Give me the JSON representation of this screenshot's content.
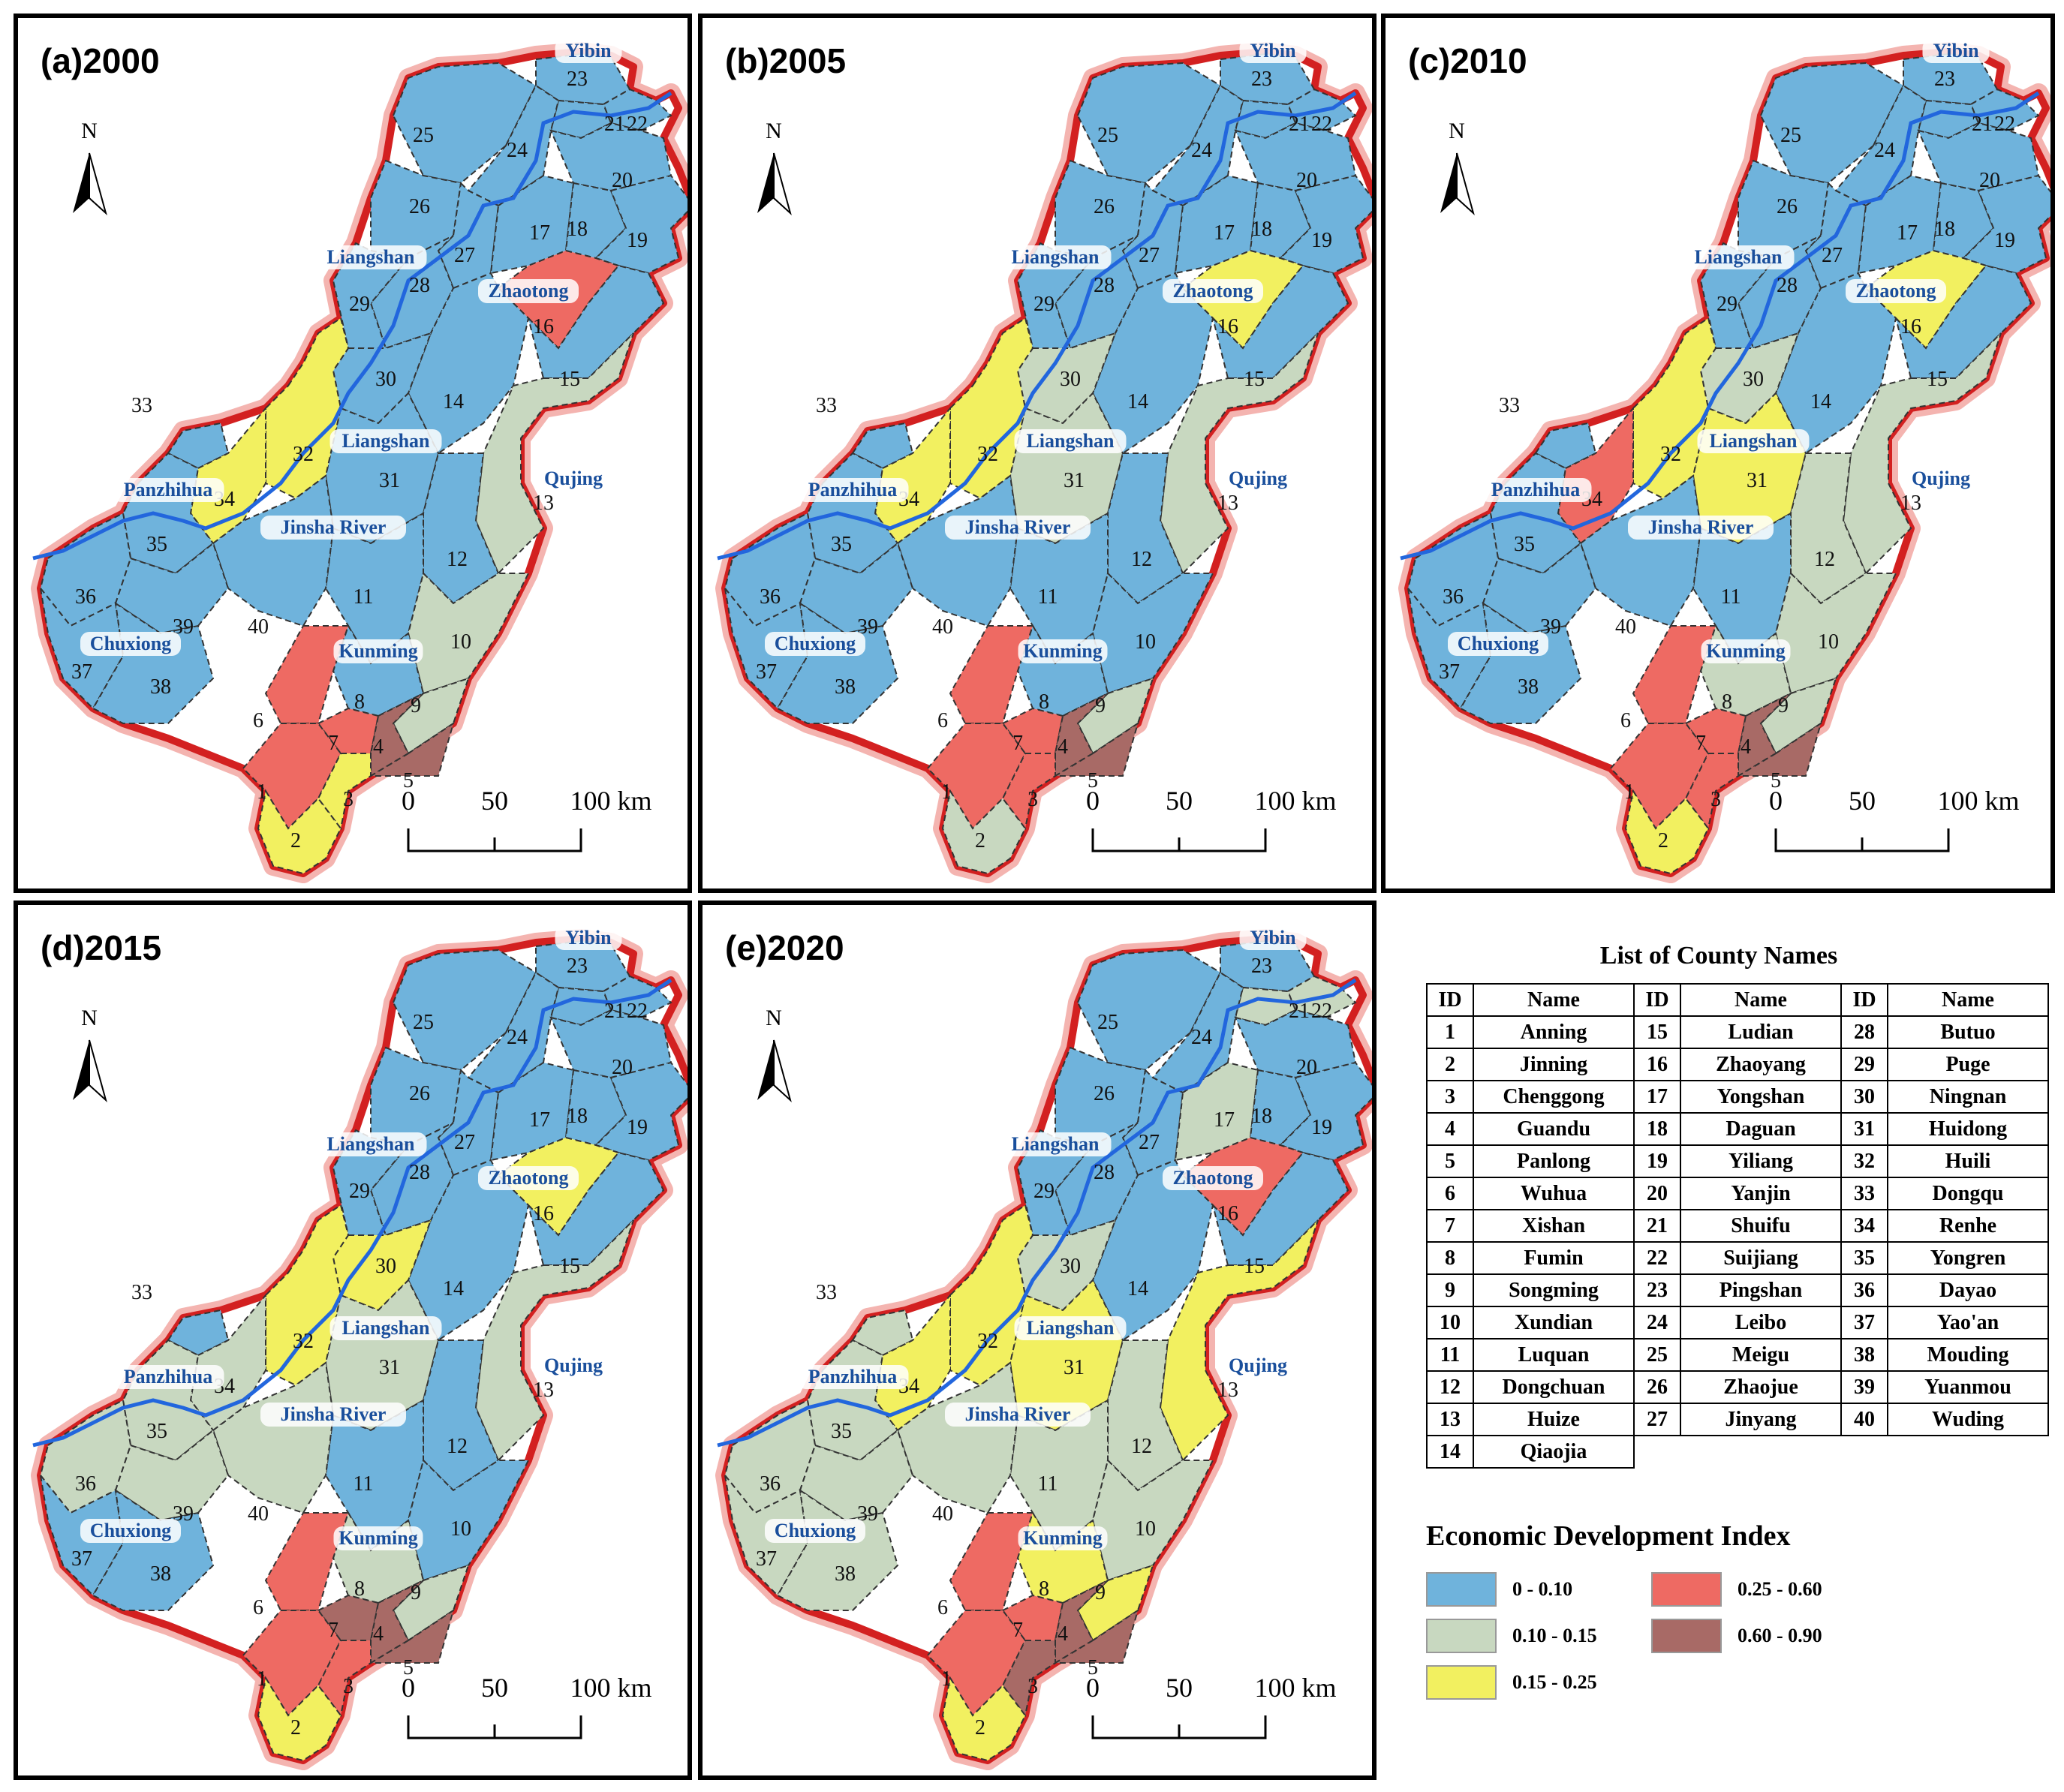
{
  "panels": [
    {
      "id": "a",
      "title": "(a)2000"
    },
    {
      "id": "b",
      "title": "(b)2005"
    },
    {
      "id": "c",
      "title": "(c)2010"
    },
    {
      "id": "d",
      "title": "(d)2015"
    },
    {
      "id": "e",
      "title": "(e)2020"
    }
  ],
  "map": {
    "north_label": "N",
    "scale_labels": [
      "0",
      "50",
      "100 km"
    ],
    "region_labels": [
      "Yibin",
      "Liangshan",
      "Zhaotong",
      "Liangshan",
      "Panzhihua",
      "Qujing",
      "Jinsha River",
      "Chuxiong",
      "Kunming"
    ]
  },
  "legend": {
    "county_list_title": "List of County Names",
    "headers": [
      "ID",
      "Name",
      "ID",
      "Name",
      "ID",
      "Name"
    ],
    "counties": [
      [
        "1",
        "Anning"
      ],
      [
        "2",
        "Jinning"
      ],
      [
        "3",
        "Chenggong"
      ],
      [
        "4",
        "Guandu"
      ],
      [
        "5",
        "Panlong"
      ],
      [
        "6",
        "Wuhua"
      ],
      [
        "7",
        "Xishan"
      ],
      [
        "8",
        "Fumin"
      ],
      [
        "9",
        "Songming"
      ],
      [
        "10",
        "Xundian"
      ],
      [
        "11",
        "Luquan"
      ],
      [
        "12",
        "Dongchuan"
      ],
      [
        "13",
        "Huize"
      ],
      [
        "14",
        "Qiaojia"
      ],
      [
        "15",
        "Ludian"
      ],
      [
        "16",
        "Zhaoyang"
      ],
      [
        "17",
        "Yongshan"
      ],
      [
        "18",
        "Daguan"
      ],
      [
        "19",
        "Yiliang"
      ],
      [
        "20",
        "Yanjin"
      ],
      [
        "21",
        "Shuifu"
      ],
      [
        "22",
        "Suijiang"
      ],
      [
        "23",
        "Pingshan"
      ],
      [
        "24",
        "Leibo"
      ],
      [
        "25",
        "Meigu"
      ],
      [
        "26",
        "Zhaojue"
      ],
      [
        "27",
        "Jinyang"
      ],
      [
        "28",
        "Butuo"
      ],
      [
        "29",
        "Puge"
      ],
      [
        "30",
        "Ningnan"
      ],
      [
        "31",
        "Huidong"
      ],
      [
        "32",
        "Huili"
      ],
      [
        "33",
        "Dongqu"
      ],
      [
        "34",
        "Renhe"
      ],
      [
        "35",
        "Yongren"
      ],
      [
        "36",
        "Dayao"
      ],
      [
        "37",
        "Yao'an"
      ],
      [
        "38",
        "Mouding"
      ],
      [
        "39",
        "Yuanmou"
      ],
      [
        "40",
        "Wuding"
      ]
    ],
    "edi_title": "Economic Development Index",
    "classes": [
      {
        "label": "0 - 0.10",
        "color": "#6fb3dc"
      },
      {
        "label": "0.10 - 0.15",
        "color": "#c8d8c0"
      },
      {
        "label": "0.15 - 0.25",
        "color": "#f2f060"
      },
      {
        "label": "0.25 - 0.60",
        "color": "#ee6a63"
      },
      {
        "label": "0.60 - 0.90",
        "color": "#a86a66"
      }
    ]
  },
  "class_by_panel": {
    "a": {
      "1": 3,
      "2": 2,
      "3": 2,
      "4": 4,
      "5": 4,
      "6": 3,
      "7": 3,
      "8": 0,
      "9": 1,
      "10": 1,
      "11": 0,
      "12": 0,
      "13": 1,
      "14": 0,
      "15": 0,
      "16": 3,
      "17": 0,
      "18": 0,
      "19": 0,
      "20": 0,
      "21": 0,
      "22": 0,
      "23": 0,
      "24": 0,
      "25": 0,
      "26": 0,
      "27": 0,
      "28": 0,
      "29": 0,
      "30": 0,
      "31": 0,
      "32": 2,
      "33": 0,
      "34": 2,
      "35": 0,
      "36": 0,
      "37": 0,
      "38": 0,
      "39": 0,
      "40": 0
    },
    "b": {
      "1": 3,
      "2": 1,
      "3": 3,
      "4": 4,
      "5": 4,
      "6": 3,
      "7": 3,
      "8": 0,
      "9": 1,
      "10": 0,
      "11": 0,
      "12": 0,
      "13": 1,
      "14": 0,
      "15": 0,
      "16": 2,
      "17": 0,
      "18": 0,
      "19": 0,
      "20": 0,
      "21": 0,
      "22": 0,
      "23": 0,
      "24": 0,
      "25": 0,
      "26": 0,
      "27": 0,
      "28": 0,
      "29": 0,
      "30": 1,
      "31": 1,
      "32": 2,
      "33": 0,
      "34": 2,
      "35": 0,
      "36": 0,
      "37": 0,
      "38": 0,
      "39": 0,
      "40": 0
    },
    "c": {
      "1": 3,
      "2": 2,
      "3": 3,
      "4": 4,
      "5": 4,
      "6": 3,
      "7": 3,
      "8": 1,
      "9": 1,
      "10": 1,
      "11": 0,
      "12": 1,
      "13": 1,
      "14": 0,
      "15": 0,
      "16": 2,
      "17": 0,
      "18": 0,
      "19": 0,
      "20": 0,
      "21": 0,
      "22": 0,
      "23": 0,
      "24": 0,
      "25": 0,
      "26": 0,
      "27": 0,
      "28": 0,
      "29": 0,
      "30": 1,
      "31": 2,
      "32": 2,
      "33": 0,
      "34": 3,
      "35": 0,
      "36": 0,
      "37": 0,
      "38": 0,
      "39": 0,
      "40": 0
    },
    "d": {
      "1": 3,
      "2": 2,
      "3": 3,
      "4": 4,
      "5": 4,
      "6": 3,
      "7": 4,
      "8": 1,
      "9": 1,
      "10": 0,
      "11": 0,
      "12": 0,
      "13": 1,
      "14": 0,
      "15": 0,
      "16": 2,
      "17": 0,
      "18": 0,
      "19": 0,
      "20": 0,
      "21": 0,
      "22": 0,
      "23": 0,
      "24": 0,
      "25": 0,
      "26": 0,
      "27": 0,
      "28": 0,
      "29": 0,
      "30": 2,
      "31": 1,
      "32": 2,
      "33": 0,
      "34": 1,
      "35": 1,
      "36": 1,
      "37": 0,
      "38": 0,
      "39": 1,
      "40": 1
    },
    "e": {
      "1": 3,
      "2": 2,
      "3": 4,
      "4": 4,
      "5": 4,
      "6": 3,
      "7": 3,
      "8": 2,
      "9": 2,
      "10": 1,
      "11": 1,
      "12": 1,
      "13": 2,
      "14": 0,
      "15": 0,
      "16": 3,
      "17": 1,
      "18": 0,
      "19": 0,
      "20": 0,
      "21": 1,
      "22": 1,
      "23": 0,
      "24": 0,
      "25": 0,
      "26": 0,
      "27": 0,
      "28": 0,
      "29": 0,
      "30": 1,
      "31": 2,
      "32": 2,
      "33": 1,
      "34": 2,
      "35": 1,
      "36": 1,
      "37": 1,
      "38": 1,
      "39": 1,
      "40": 1
    }
  }
}
